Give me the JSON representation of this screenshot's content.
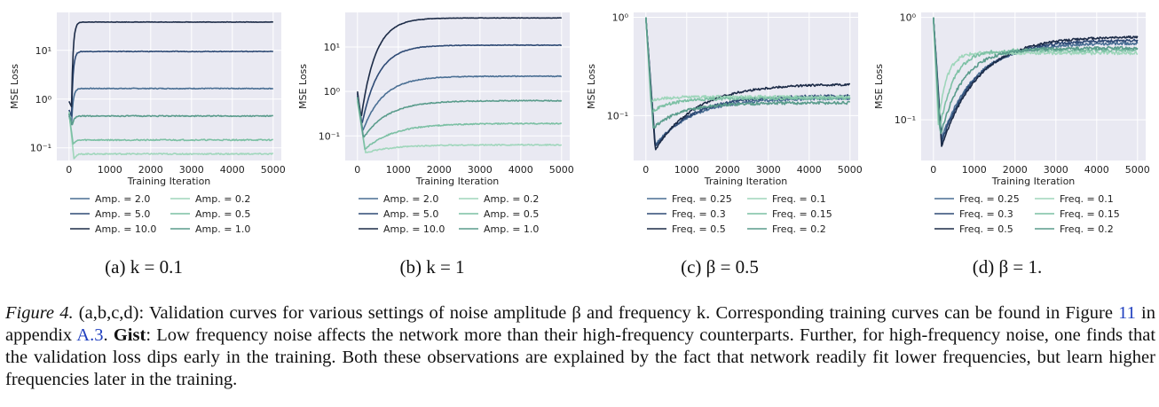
{
  "chart_data": [
    {
      "type": "line",
      "panel": "a",
      "subcaption": "(a) k = 0.1",
      "title": "",
      "xlabel": "Training Iteration",
      "ylabel": "MSE Loss",
      "xlim": [
        -300,
        5200
      ],
      "ylim": [
        0.055,
        60
      ],
      "yscale": "log",
      "xticks": [
        0,
        1000,
        2000,
        3000,
        4000,
        5000
      ],
      "yticks": [
        {
          "v": 10,
          "t": "10¹"
        },
        {
          "v": 1,
          "t": "10⁰"
        },
        {
          "v": 0.1,
          "t": "10⁻¹"
        }
      ],
      "grid": true,
      "legend": "bottom",
      "series": [
        {
          "name": "Amp. = 2.0",
          "color": "#4a6f94",
          "start": 0.45,
          "dip": 0.3,
          "dip_at": 60,
          "final": 1.65,
          "tau": 40,
          "noise": 0.02
        },
        {
          "name": "Amp. = 5.0",
          "color": "#2e4a75",
          "start": 0.6,
          "dip": 0.45,
          "dip_at": 60,
          "final": 9.5,
          "tau": 40,
          "noise": 0.015
        },
        {
          "name": "Amp. = 10.0",
          "color": "#1c2b47",
          "start": 0.9,
          "dip": 0.7,
          "dip_at": 60,
          "final": 38,
          "tau": 40,
          "noise": 0.01
        },
        {
          "name": "Amp. = 0.2",
          "color": "#9fd6bb",
          "start": 0.55,
          "dip": 0.06,
          "dip_at": 120,
          "final": 0.075,
          "tau": 60,
          "noise": 0.03
        },
        {
          "name": "Amp. = 0.5",
          "color": "#7cc0a4",
          "start": 0.5,
          "dip": 0.12,
          "dip_at": 100,
          "final": 0.145,
          "tau": 60,
          "noise": 0.03
        },
        {
          "name": "Amp. = 1.0",
          "color": "#5a9c8c",
          "start": 0.5,
          "dip": 0.3,
          "dip_at": 80,
          "final": 0.45,
          "tau": 50,
          "noise": 0.025
        }
      ]
    },
    {
      "type": "line",
      "panel": "b",
      "subcaption": "(b) k = 1",
      "title": "",
      "xlabel": "Training Iteration",
      "ylabel": "MSE Loss",
      "xlim": [
        -300,
        5200
      ],
      "ylim": [
        0.028,
        60
      ],
      "yscale": "log",
      "xticks": [
        0,
        1000,
        2000,
        3000,
        4000,
        5000
      ],
      "yticks": [
        {
          "v": 10,
          "t": "10¹"
        },
        {
          "v": 1,
          "t": "10⁰"
        },
        {
          "v": 0.1,
          "t": "10⁻¹"
        }
      ],
      "grid": true,
      "legend": "bottom",
      "series": [
        {
          "name": "Amp. = 2.0",
          "color": "#4a6f94",
          "start": 0.8,
          "dip": 0.13,
          "dip_at": 130,
          "final": 2.2,
          "tau": 500,
          "noise": 0.02
        },
        {
          "name": "Amp. = 5.0",
          "color": "#2e4a75",
          "start": 0.9,
          "dip": 0.18,
          "dip_at": 110,
          "final": 11,
          "tau": 400,
          "noise": 0.015
        },
        {
          "name": "Amp. = 10.0",
          "color": "#1c2b47",
          "start": 1.0,
          "dip": 0.25,
          "dip_at": 90,
          "final": 45,
          "tau": 350,
          "noise": 0.01
        },
        {
          "name": "Amp. = 0.2",
          "color": "#9fd6bb",
          "start": 0.6,
          "dip": 0.042,
          "dip_at": 200,
          "final": 0.063,
          "tau": 700,
          "noise": 0.03
        },
        {
          "name": "Amp. = 0.5",
          "color": "#7cc0a4",
          "start": 0.7,
          "dip": 0.05,
          "dip_at": 180,
          "final": 0.19,
          "tau": 700,
          "noise": 0.03
        },
        {
          "name": "Amp. = 1.0",
          "color": "#5a9c8c",
          "start": 0.75,
          "dip": 0.09,
          "dip_at": 150,
          "final": 0.62,
          "tau": 600,
          "noise": 0.025
        }
      ]
    },
    {
      "type": "line",
      "panel": "c",
      "subcaption": "(c) β = 0.5",
      "title": "",
      "xlabel": "Training Iteration",
      "ylabel": "MSE Loss",
      "xlim": [
        -300,
        5200
      ],
      "ylim": [
        0.035,
        1.12
      ],
      "yscale": "log",
      "xticks": [
        0,
        1000,
        2000,
        3000,
        4000,
        5000
      ],
      "yticks": [
        {
          "v": 1,
          "t": "10⁰"
        },
        {
          "v": 0.1,
          "t": "10⁻¹"
        }
      ],
      "grid": true,
      "legend": "bottom",
      "series": [
        {
          "name": "Freq. = 0.25",
          "color": "#4a6f94",
          "start": 1.0,
          "dip": 0.05,
          "dip_at": 230,
          "final": 0.15,
          "tau": 900,
          "noise": 0.03
        },
        {
          "name": "Freq. = 0.3",
          "color": "#2e4a75",
          "start": 1.0,
          "dip": 0.048,
          "dip_at": 230,
          "final": 0.16,
          "tau": 900,
          "noise": 0.03
        },
        {
          "name": "Freq. = 0.5",
          "color": "#1c2b47",
          "start": 1.0,
          "dip": 0.045,
          "dip_at": 230,
          "final": 0.21,
          "tau": 1000,
          "noise": 0.025
        },
        {
          "name": "Freq. = 0.1",
          "color": "#9fd6bb",
          "start": 1.0,
          "dip": 0.14,
          "dip_at": 120,
          "final": 0.155,
          "tau": 300,
          "noise": 0.035
        },
        {
          "name": "Freq. = 0.15",
          "color": "#7cc0a4",
          "start": 1.0,
          "dip": 0.11,
          "dip_at": 150,
          "final": 0.15,
          "tau": 500,
          "noise": 0.035
        },
        {
          "name": "Freq. = 0.2",
          "color": "#5a9c8c",
          "start": 1.0,
          "dip": 0.075,
          "dip_at": 180,
          "final": 0.135,
          "tau": 700,
          "noise": 0.035
        }
      ]
    },
    {
      "type": "line",
      "panel": "d",
      "subcaption": "(d) β = 1.",
      "title": "",
      "xlabel": "Training Iteration",
      "ylabel": "MSE Loss",
      "xlim": [
        -300,
        5200
      ],
      "ylim": [
        0.04,
        1.12
      ],
      "yscale": "log",
      "xticks": [
        0,
        1000,
        2000,
        3000,
        4000,
        5000
      ],
      "yticks": [
        {
          "v": 1,
          "t": "10⁰"
        },
        {
          "v": 0.1,
          "t": "10⁻¹"
        }
      ],
      "grid": true,
      "legend": "bottom",
      "series": [
        {
          "name": "Freq. = 0.25",
          "color": "#4a6f94",
          "start": 1.0,
          "dip": 0.065,
          "dip_at": 200,
          "final": 0.56,
          "tau": 800,
          "noise": 0.03
        },
        {
          "name": "Freq. = 0.3",
          "color": "#2e4a75",
          "start": 1.0,
          "dip": 0.06,
          "dip_at": 200,
          "final": 0.6,
          "tau": 850,
          "noise": 0.03
        },
        {
          "name": "Freq. = 0.5",
          "color": "#1c2b47",
          "start": 1.0,
          "dip": 0.055,
          "dip_at": 200,
          "final": 0.65,
          "tau": 900,
          "noise": 0.025
        },
        {
          "name": "Freq. = 0.1",
          "color": "#9fd6bb",
          "start": 1.0,
          "dip": 0.09,
          "dip_at": 120,
          "final": 0.45,
          "tau": 200,
          "noise": 0.04
        },
        {
          "name": "Freq. = 0.15",
          "color": "#7cc0a4",
          "start": 1.0,
          "dip": 0.08,
          "dip_at": 150,
          "final": 0.48,
          "tau": 350,
          "noise": 0.04
        },
        {
          "name": "Freq. = 0.2",
          "color": "#5a9c8c",
          "start": 1.0,
          "dip": 0.07,
          "dip_at": 170,
          "final": 0.5,
          "tau": 550,
          "noise": 0.035
        }
      ]
    }
  ],
  "caption": {
    "label": "Figure 4.",
    "part1": " (a,b,c,d): Validation curves for various settings of noise amplitude β and frequency k. Corresponding training curves can be found in Figure ",
    "figref": "11",
    "part2": " in appendix ",
    "appref": "A.3",
    "part3": ". ",
    "gist": "Gist",
    "part4": ": Low frequency noise affects the network more than their high-frequency counterparts. Further, for high-frequency noise, one finds that the validation loss dips early in the training. Both these observations are explained by the fact that network readily fit lower frequencies, but learn higher frequencies later in the training."
  }
}
